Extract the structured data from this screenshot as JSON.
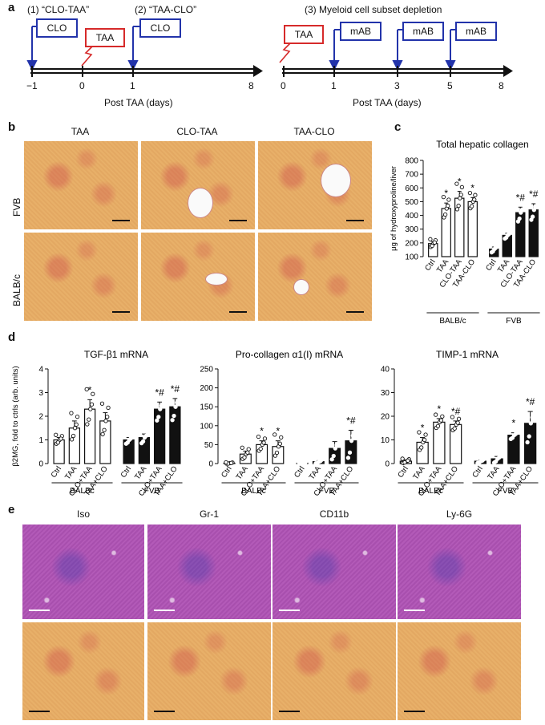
{
  "panels": {
    "a": "a",
    "b": "b",
    "c": "c",
    "d": "d",
    "e": "e"
  },
  "panel_a": {
    "protocol1": "(1) “CLO-TAA”",
    "protocol2": "(2) “TAA-CLO”",
    "protocol3": "(3) Myeloid cell subset depletion",
    "clo": "CLO",
    "taa": "TAA",
    "mab": "mAB",
    "timeline1_ticks": [
      "−1",
      "0",
      "1",
      "8"
    ],
    "timeline2_ticks": [
      "0",
      "1",
      "3",
      "5",
      "8"
    ],
    "xlabel": "Post TAA (days)",
    "colors": {
      "blue": "#2233aa",
      "red": "#d62a2a"
    }
  },
  "panel_b": {
    "columns": [
      "TAA",
      "CLO-TAA",
      "TAA-CLO"
    ],
    "rows": [
      "FVB",
      "BALB/c"
    ]
  },
  "panel_e": {
    "columns": [
      "Iso",
      "Gr-1",
      "CD11b",
      "Ly-6G"
    ]
  },
  "chart_data": [
    {
      "id": "c",
      "type": "bar",
      "title": "Total hepatic collagen",
      "ylabel": "μg of hydroxyproline/liver",
      "ylim": [
        100,
        800
      ],
      "yticks": [
        "100",
        "200",
        "300",
        "400",
        "500",
        "600",
        "700",
        "800"
      ],
      "categories": [
        "Ctrl",
        "TAA",
        "CLO-TAA",
        "TAA-CLO",
        "Ctrl",
        "TAA",
        "CLO-TAA",
        "TAA-CLO"
      ],
      "groups": [
        "BALB/c",
        "FVB"
      ],
      "fill": [
        "open",
        "open",
        "open",
        "open",
        "solid",
        "solid",
        "solid",
        "solid"
      ],
      "values": [
        195,
        450,
        525,
        500,
        155,
        255,
        420,
        440
      ],
      "errors": [
        15,
        40,
        50,
        30,
        15,
        15,
        40,
        45
      ],
      "annotations": [
        "",
        "*",
        "*",
        "*",
        "",
        "",
        "*#",
        "*#"
      ]
    },
    {
      "id": "d1",
      "type": "bar",
      "title": "TGF-β1 mRNA",
      "ylabel": "β2MG, fold to ctrls (arb. units)",
      "ylim": [
        0,
        4
      ],
      "yticks": [
        "0",
        "1",
        "2",
        "3",
        "4"
      ],
      "categories": [
        "Ctrl",
        "TAA",
        "CLO+TAA",
        "TAA+CLO",
        "Ctrl",
        "TAA",
        "CLO+TAA",
        "TAA+CLO"
      ],
      "groups": [
        "BALBc",
        "FVB"
      ],
      "fill": [
        "open",
        "open",
        "open",
        "open",
        "solid",
        "solid",
        "solid",
        "solid"
      ],
      "values": [
        1.0,
        1.5,
        2.3,
        1.8,
        1.0,
        1.1,
        2.3,
        2.4
      ],
      "errors": [
        0.1,
        0.3,
        0.4,
        0.35,
        0.1,
        0.15,
        0.3,
        0.35
      ],
      "annotations": [
        "",
        "",
        "*",
        "",
        "",
        "",
        "*#",
        "*#"
      ]
    },
    {
      "id": "d2",
      "type": "bar",
      "title": "Pro-collagen α1(I) mRNA",
      "ylim": [
        0,
        250
      ],
      "yticks": [
        "0",
        "50",
        "100",
        "150",
        "200",
        "250"
      ],
      "categories": [
        "Ctrl",
        "TAA",
        "CLO+TAA",
        "TAA+CLO",
        "Ctrl",
        "TAA",
        "CLO+TAA",
        "TAA+CLO"
      ],
      "groups": [
        "BALBc",
        "FVB"
      ],
      "fill": [
        "open",
        "open",
        "open",
        "open",
        "solid",
        "solid",
        "solid",
        "solid"
      ],
      "values": [
        1,
        25,
        50,
        45,
        1,
        5,
        40,
        60
      ],
      "errors": [
        1,
        8,
        10,
        15,
        1,
        3,
        18,
        28
      ],
      "annotations": [
        "",
        "",
        "*",
        "*",
        "",
        "",
        "",
        "*#"
      ]
    },
    {
      "id": "d3",
      "type": "bar",
      "title": "TIMP-1 mRNA",
      "ylim": [
        0,
        40
      ],
      "yticks": [
        "0",
        "10",
        "20",
        "30",
        "40"
      ],
      "categories": [
        "Ctrl",
        "TAA",
        "CLO+TAA",
        "TAA+CLO",
        "Ctrl",
        "TAA",
        "CLO+TAA",
        "TAA+CLO"
      ],
      "groups": [
        "BALBc",
        "FVB"
      ],
      "fill": [
        "open",
        "open",
        "open",
        "open",
        "solid",
        "solid",
        "solid",
        "solid"
      ],
      "values": [
        1,
        9,
        17.5,
        16.5,
        1,
        2,
        12,
        17
      ],
      "errors": [
        0.5,
        2,
        1.5,
        1.5,
        0.5,
        1,
        1,
        5
      ],
      "annotations": [
        "",
        "*",
        "*",
        "*#",
        "",
        "",
        "*",
        "*#"
      ]
    }
  ]
}
